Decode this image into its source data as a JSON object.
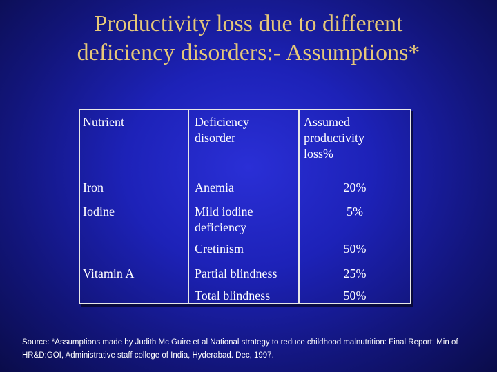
{
  "title": {
    "line1": "Productivity loss due to different",
    "line2": "deficiency disorders:- Assumptions*"
  },
  "table": {
    "headers": {
      "nutrient": "Nutrient",
      "disorder_line1": "Deficiency",
      "disorder_line2": "disorder",
      "loss_line1": "Assumed",
      "loss_line2": "productivity",
      "loss_line3": "loss%"
    },
    "rows": [
      {
        "nutrient": "Iron",
        "disorder": "Anemia",
        "loss": "20%"
      },
      {
        "nutrient": "Iodine",
        "disorder_line1": "Mild iodine",
        "disorder_line2": "deficiency",
        "loss": "5%"
      },
      {
        "nutrient": "",
        "disorder": "Cretinism",
        "loss": "50%"
      },
      {
        "nutrient": "Vitamin A",
        "disorder": "Partial blindness",
        "loss": "25%"
      },
      {
        "nutrient": "",
        "disorder": "Total blindness",
        "loss": "50%"
      }
    ]
  },
  "source": {
    "line1": "Source: *Assumptions made by Judith Mc.Guire et al  National strategy to reduce childhood malnutrition: Final Report; Min of",
    "line2": "HR&D:GOI, Administrative staff college of India, Hyderabad. Dec, 1997."
  }
}
